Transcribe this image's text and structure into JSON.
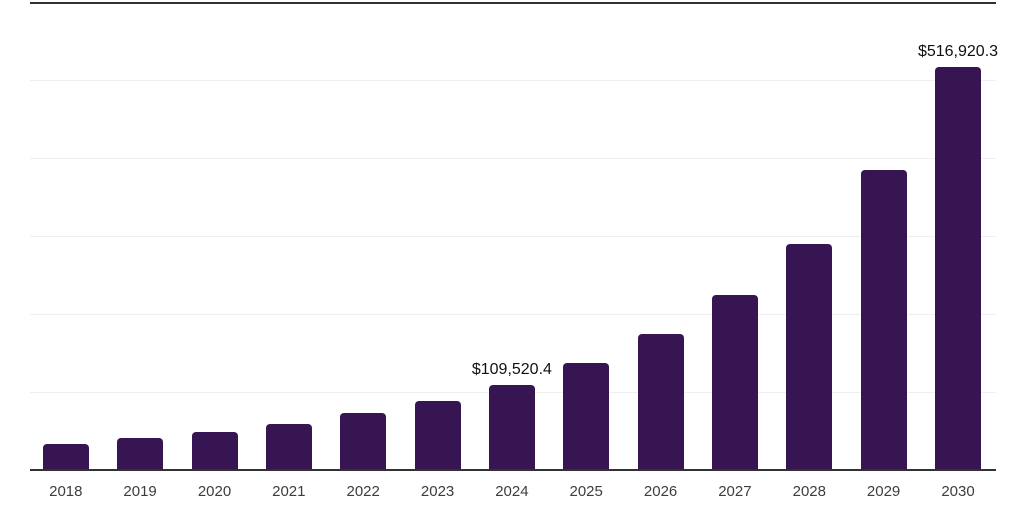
{
  "chart": {
    "currency_prefix": "$"
  },
  "colors": {
    "bar": "#371553",
    "gridline": "#efefef",
    "axis_line": "#323232",
    "value_label": "#101010",
    "tick_label": "#3d3d3d",
    "background": "#ffffff"
  },
  "chart_data": {
    "type": "bar",
    "title": "",
    "xlabel": "",
    "ylabel": "",
    "categories": [
      "2018",
      "2019",
      "2020",
      "2021",
      "2022",
      "2023",
      "2024",
      "2025",
      "2026",
      "2027",
      "2028",
      "2029",
      "2030"
    ],
    "values": [
      34000,
      40600,
      49100,
      59000,
      72700,
      88500,
      109520.4,
      137600,
      174000,
      224400,
      289400,
      385000,
      516920.3
    ],
    "data_labels": [
      "",
      "",
      "",
      "",
      "",
      "",
      "$109,520.4",
      "",
      "",
      "",
      "",
      "",
      "$516,920.3"
    ],
    "ylim": [
      0,
      600000
    ],
    "gridline_values": [
      100000,
      200000,
      300000,
      400000,
      500000
    ],
    "grid": true,
    "legend": false,
    "y_axis_ticks_visible": false,
    "notes": "dark border line at top (600000) and bottom (0) of plot area; only 2024 and 2030 bars carry data labels"
  }
}
